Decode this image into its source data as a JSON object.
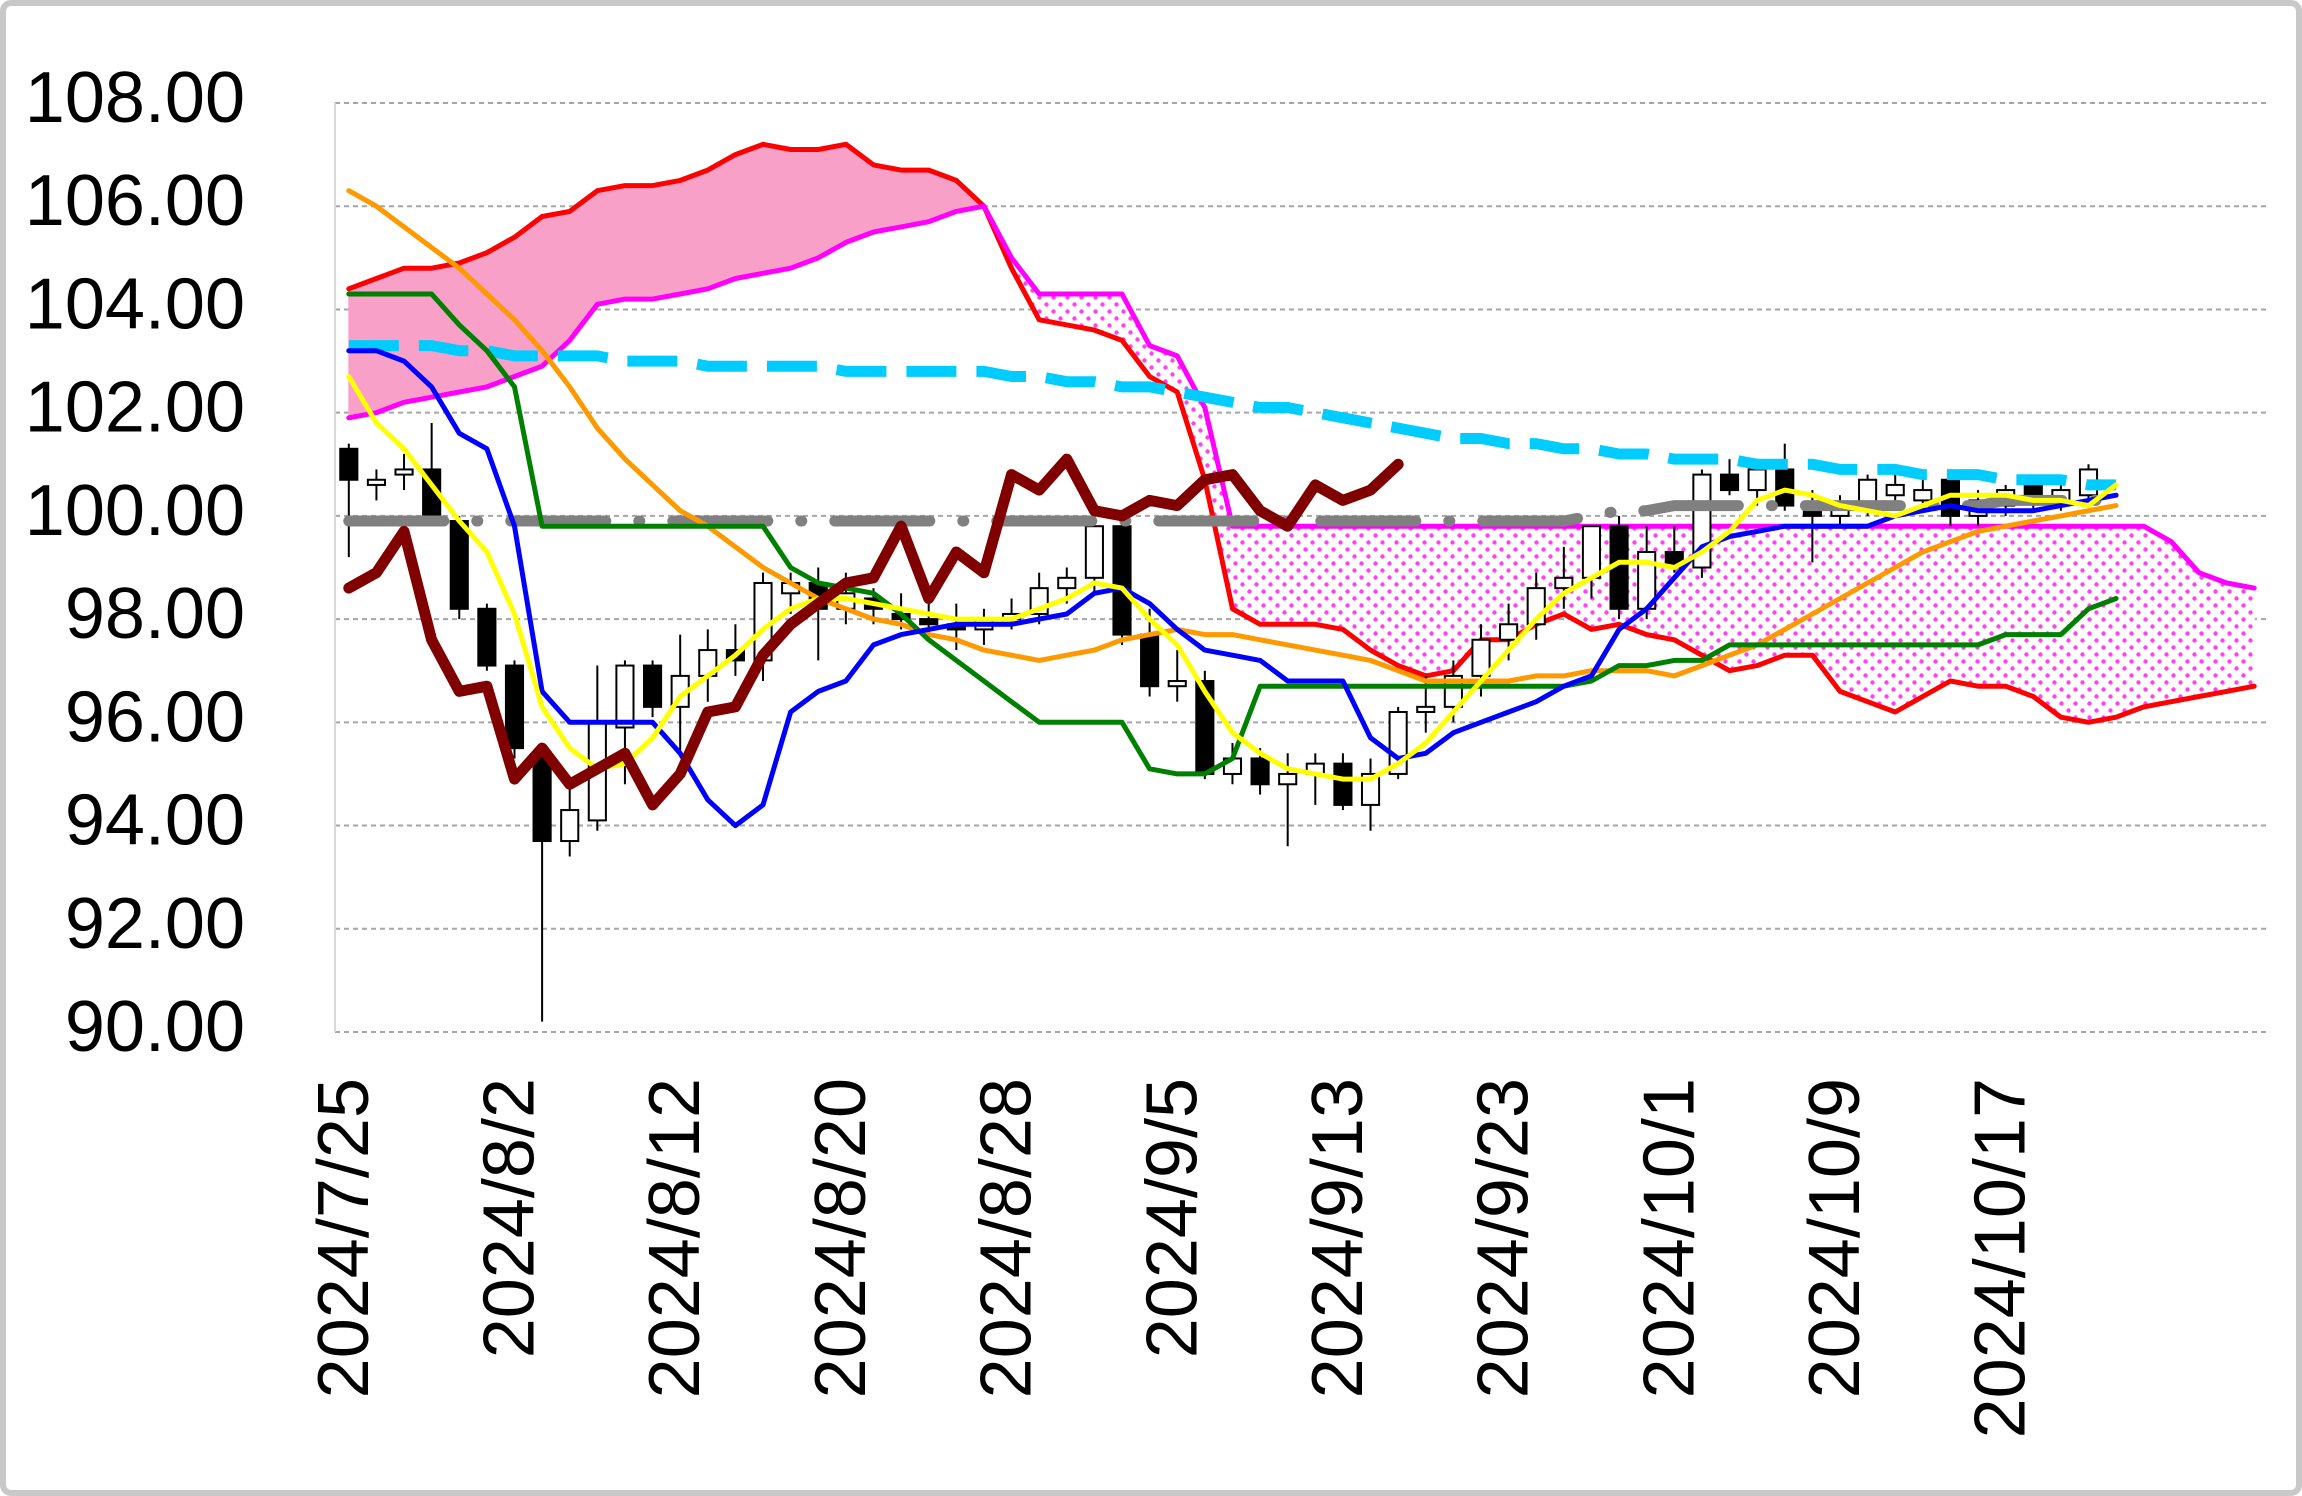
{
  "chart_data": {
    "type": "ichimoku",
    "categories": [
      "2024/7/25",
      null,
      null,
      null,
      null,
      null,
      "2024/8/2",
      null,
      null,
      null,
      null,
      null,
      "2024/8/12",
      null,
      null,
      null,
      null,
      null,
      "2024/8/20",
      null,
      null,
      null,
      null,
      null,
      "2024/8/28",
      null,
      null,
      null,
      null,
      null,
      "2024/9/5",
      null,
      null,
      null,
      null,
      null,
      "2024/9/13",
      null,
      null,
      null,
      null,
      null,
      "2024/9/23",
      null,
      null,
      null,
      null,
      null,
      "2024/10/1",
      null,
      null,
      null,
      null,
      null,
      "2024/10/9",
      null,
      null,
      null,
      null,
      null,
      "2024/10/17",
      null,
      null,
      null,
      null,
      null,
      null,
      null,
      null,
      null
    ],
    "ylim": [
      90,
      108
    ],
    "yticks": [
      {
        "value": 90,
        "label": "90.00"
      },
      {
        "value": 92,
        "label": "92.00"
      },
      {
        "value": 94,
        "label": "94.00"
      },
      {
        "value": 96,
        "label": "96.00"
      },
      {
        "value": 98,
        "label": "98.00"
      },
      {
        "value": 100,
        "label": "100.00"
      },
      {
        "value": 102,
        "label": "102.00"
      },
      {
        "value": 104,
        "label": "104.00"
      },
      {
        "value": 106,
        "label": "106.00"
      },
      {
        "value": 108,
        "label": "108.00"
      }
    ],
    "grid": true,
    "candles": {
      "up_color": "#ffffff",
      "down_color": "#000000",
      "edge_color": "#000000",
      "open": [
        101.3,
        100.6,
        100.8,
        100.9,
        99.9,
        98.2,
        97.1,
        95.4,
        93.7,
        94.1,
        95.9,
        97.1,
        96.3,
        96.9,
        97.4,
        97.2,
        98.5,
        98.7,
        98.2,
        98.4,
        98.1,
        98.0,
        97.9,
        97.8,
        98.0,
        98.1,
        98.6,
        98.8,
        99.8,
        97.7,
        96.7,
        96.8,
        95.0,
        95.3,
        94.8,
        95.0,
        95.2,
        94.4,
        95.0,
        96.2,
        96.3,
        96.9,
        97.6,
        97.9,
        98.6,
        98.8,
        99.8,
        98.2,
        99.3,
        99.0,
        100.8,
        100.5,
        100.9,
        100.2,
        100.0,
        100.2,
        100.4,
        100.3,
        100.7,
        100.0,
        100.2,
        100.6,
        100.3,
        100.4,
        null,
        null,
        null,
        null,
        null,
        null
      ],
      "high": [
        101.4,
        100.9,
        101.2,
        101.8,
        100.0,
        98.3,
        97.2,
        95.6,
        94.8,
        97.1,
        97.2,
        97.2,
        97.7,
        97.8,
        97.9,
        98.9,
        98.9,
        99.0,
        98.9,
        98.6,
        98.5,
        98.3,
        98.3,
        98.2,
        98.4,
        98.9,
        99.0,
        100.1,
        99.9,
        98.2,
        97.4,
        97.0,
        95.6,
        95.5,
        95.4,
        95.4,
        95.4,
        95.3,
        96.3,
        96.9,
        97.2,
        97.9,
        98.3,
        98.9,
        99.4,
        99.8,
        100.0,
        99.8,
        99.8,
        100.9,
        101.1,
        101.1,
        101.4,
        100.5,
        100.4,
        100.8,
        100.8,
        100.7,
        100.9,
        100.5,
        100.6,
        100.8,
        100.6,
        101.0,
        null,
        null,
        null,
        null,
        null,
        null
      ],
      "low": [
        99.2,
        100.3,
        100.5,
        99.9,
        98.0,
        97.0,
        95.3,
        90.2,
        93.4,
        93.9,
        94.8,
        96.1,
        95.4,
        96.4,
        96.9,
        96.8,
        98.1,
        97.2,
        97.9,
        97.9,
        97.8,
        97.6,
        97.4,
        97.5,
        97.8,
        97.9,
        98.3,
        98.5,
        97.5,
        96.5,
        96.4,
        94.9,
        94.8,
        94.6,
        93.6,
        94.4,
        94.3,
        93.9,
        94.9,
        95.8,
        96.0,
        96.5,
        97.2,
        97.6,
        98.2,
        98.4,
        98.0,
        98.0,
        98.9,
        98.8,
        100.4,
        100.2,
        100.1,
        99.1,
        99.8,
        100.0,
        100.1,
        100.1,
        99.8,
        99.8,
        100.0,
        100.1,
        100.1,
        100.2,
        null,
        null,
        null,
        null,
        null,
        null
      ],
      "close": [
        100.7,
        100.7,
        100.9,
        100.0,
        98.2,
        97.1,
        95.5,
        93.7,
        94.3,
        96.0,
        97.1,
        96.3,
        96.9,
        97.4,
        97.2,
        98.7,
        98.7,
        98.2,
        98.5,
        98.2,
        98.0,
        97.9,
        97.8,
        98.0,
        98.1,
        98.6,
        98.8,
        99.8,
        97.7,
        96.7,
        96.8,
        95.0,
        95.3,
        94.8,
        95.0,
        95.2,
        94.4,
        95.0,
        96.2,
        96.3,
        96.9,
        97.6,
        97.9,
        98.6,
        98.8,
        99.8,
        98.2,
        99.3,
        99.0,
        100.8,
        100.5,
        100.9,
        100.2,
        100.0,
        100.2,
        100.7,
        100.6,
        100.5,
        100.0,
        100.3,
        100.5,
        100.3,
        100.5,
        100.9,
        null,
        null,
        null,
        null,
        null,
        null
      ]
    },
    "cloud_colors": {
      "above": "#f9a0c8",
      "below": "#ff44ee"
    },
    "series": [
      {
        "role": "senkou_a",
        "color": "#ff0000",
        "line_style": "solid",
        "bold": false,
        "values": [
          104.4,
          104.6,
          104.8,
          104.8,
          104.9,
          105.1,
          105.4,
          105.8,
          105.9,
          106.3,
          106.4,
          106.4,
          106.5,
          106.7,
          107.0,
          107.2,
          107.1,
          107.1,
          107.2,
          106.8,
          106.7,
          106.7,
          106.5,
          106.0,
          104.8,
          103.8,
          103.7,
          103.6,
          103.4,
          102.7,
          102.4,
          100.7,
          98.2,
          97.9,
          97.9,
          97.9,
          97.8,
          97.4,
          97.1,
          96.9,
          97.0,
          97.6,
          97.6,
          97.9,
          98.1,
          97.8,
          97.9,
          97.7,
          97.6,
          97.3,
          97.0,
          97.1,
          97.3,
          97.3,
          96.6,
          96.4,
          96.2,
          96.5,
          96.8,
          96.7,
          96.7,
          96.5,
          96.1,
          96.0,
          96.1,
          96.3,
          96.4,
          96.5,
          96.6,
          96.7
        ]
      },
      {
        "role": "senkou_b",
        "color": "#ff00ff",
        "line_style": "solid",
        "bold": false,
        "values": [
          101.9,
          102.0,
          102.2,
          102.3,
          102.4,
          102.5,
          102.7,
          102.9,
          103.4,
          104.1,
          104.2,
          104.2,
          104.3,
          104.4,
          104.6,
          104.7,
          104.8,
          105.0,
          105.3,
          105.5,
          105.6,
          105.7,
          105.9,
          106.0,
          105.0,
          104.3,
          104.3,
          104.3,
          104.3,
          103.3,
          103.1,
          102.1,
          99.8,
          99.8,
          99.8,
          99.8,
          99.8,
          99.8,
          99.8,
          99.8,
          99.8,
          99.8,
          99.8,
          99.8,
          99.8,
          99.8,
          99.8,
          99.8,
          99.8,
          99.8,
          99.8,
          99.8,
          99.8,
          99.8,
          99.8,
          99.8,
          99.8,
          99.8,
          99.8,
          99.8,
          99.8,
          99.8,
          99.8,
          99.8,
          99.8,
          99.8,
          99.5,
          98.9,
          98.7,
          98.6
        ]
      },
      {
        "color": "#808080",
        "line_style": "dashdot",
        "bold": true,
        "values": [
          99.9,
          99.9,
          99.9,
          99.9,
          99.9,
          99.9,
          99.9,
          99.9,
          99.9,
          99.9,
          99.9,
          99.9,
          99.9,
          99.9,
          99.9,
          99.9,
          99.9,
          99.9,
          99.9,
          99.9,
          99.9,
          99.9,
          99.9,
          99.9,
          99.9,
          99.9,
          99.9,
          99.9,
          99.9,
          99.9,
          99.9,
          99.9,
          99.9,
          99.9,
          99.9,
          99.9,
          99.9,
          99.9,
          99.9,
          99.9,
          99.9,
          99.9,
          99.9,
          99.9,
          99.9,
          100.0,
          100.1,
          100.1,
          100.2,
          100.2,
          100.2,
          100.2,
          100.2,
          100.2,
          100.2,
          100.2,
          100.2,
          100.2,
          100.2,
          100.2,
          100.3,
          100.3,
          100.3,
          100.3,
          100.3,
          null,
          null,
          null,
          null,
          null
        ]
      },
      {
        "color": "#00ccff",
        "line_style": "dashed",
        "bold": true,
        "values": [
          103.3,
          103.3,
          103.3,
          103.3,
          103.2,
          103.2,
          103.1,
          103.1,
          103.1,
          103.1,
          103.0,
          103.0,
          103.0,
          102.9,
          102.9,
          102.9,
          102.9,
          102.9,
          102.8,
          102.8,
          102.8,
          102.8,
          102.8,
          102.8,
          102.7,
          102.7,
          102.6,
          102.6,
          102.5,
          102.5,
          102.4,
          102.3,
          102.2,
          102.1,
          102.1,
          102.0,
          101.9,
          101.8,
          101.7,
          101.6,
          101.5,
          101.5,
          101.4,
          101.4,
          101.3,
          101.3,
          101.2,
          101.2,
          101.1,
          101.1,
          101.1,
          101.0,
          101.0,
          101.0,
          100.9,
          100.9,
          100.9,
          100.8,
          100.8,
          100.8,
          100.7,
          100.7,
          100.7,
          100.6,
          100.6,
          null,
          null,
          null,
          null,
          null
        ]
      },
      {
        "color": "#ff9900",
        "line_style": "solid",
        "bold": false,
        "values": [
          106.3,
          106.0,
          105.6,
          105.2,
          104.8,
          104.3,
          103.8,
          103.2,
          102.5,
          101.7,
          101.1,
          100.6,
          100.1,
          99.8,
          99.4,
          99.0,
          98.7,
          98.4,
          98.2,
          98.0,
          97.9,
          97.7,
          97.6,
          97.4,
          97.3,
          97.2,
          97.3,
          97.4,
          97.6,
          97.7,
          97.8,
          97.7,
          97.7,
          97.6,
          97.5,
          97.4,
          97.3,
          97.2,
          97.0,
          96.8,
          96.8,
          96.8,
          96.8,
          96.9,
          96.9,
          97.0,
          97.0,
          97.0,
          96.9,
          97.1,
          97.3,
          97.5,
          97.8,
          98.1,
          98.4,
          98.7,
          99.0,
          99.3,
          99.5,
          99.7,
          99.8,
          99.9,
          100.0,
          100.1,
          100.2,
          null,
          null,
          null,
          null,
          null
        ]
      },
      {
        "color": "#008000",
        "line_style": "solid",
        "bold": false,
        "values": [
          104.3,
          104.3,
          104.3,
          104.3,
          103.7,
          103.2,
          102.5,
          99.8,
          99.8,
          99.8,
          99.8,
          99.8,
          99.8,
          99.8,
          99.8,
          99.8,
          99.0,
          98.7,
          98.6,
          98.5,
          98.1,
          97.6,
          97.2,
          96.8,
          96.4,
          96.0,
          96.0,
          96.0,
          96.0,
          95.1,
          95.0,
          95.0,
          95.3,
          96.7,
          96.7,
          96.7,
          96.7,
          96.7,
          96.7,
          96.7,
          96.7,
          96.7,
          96.7,
          96.7,
          96.7,
          96.8,
          97.1,
          97.1,
          97.2,
          97.2,
          97.5,
          97.5,
          97.5,
          97.5,
          97.5,
          97.5,
          97.5,
          97.5,
          97.5,
          97.5,
          97.7,
          97.7,
          97.7,
          98.2,
          98.4,
          null,
          null,
          null,
          null,
          null
        ]
      },
      {
        "color": "#0000ff",
        "line_style": "solid",
        "bold": false,
        "values": [
          103.2,
          103.2,
          103.0,
          102.5,
          101.6,
          101.3,
          99.8,
          96.6,
          96.0,
          96.0,
          96.0,
          96.0,
          95.4,
          94.5,
          94.0,
          94.4,
          96.2,
          96.6,
          96.8,
          97.5,
          97.7,
          97.8,
          97.9,
          97.9,
          97.9,
          98.0,
          98.1,
          98.5,
          98.6,
          98.3,
          97.8,
          97.4,
          97.3,
          97.2,
          96.8,
          96.8,
          96.8,
          95.7,
          95.3,
          95.4,
          95.8,
          96.0,
          96.2,
          96.4,
          96.7,
          96.9,
          97.8,
          98.2,
          98.8,
          99.4,
          99.6,
          99.7,
          99.8,
          99.8,
          99.8,
          99.8,
          100.0,
          100.1,
          100.2,
          100.1,
          100.1,
          100.1,
          100.2,
          100.3,
          100.4,
          null,
          null,
          null,
          null,
          null
        ]
      },
      {
        "color": "#ffff00",
        "line_style": "solid",
        "bold": false,
        "values": [
          102.7,
          101.8,
          101.3,
          100.6,
          99.9,
          99.3,
          98.1,
          96.3,
          95.5,
          95.1,
          95.2,
          95.7,
          96.5,
          96.9,
          97.3,
          97.8,
          98.2,
          98.4,
          98.4,
          98.3,
          98.2,
          98.1,
          98.0,
          98.0,
          98.0,
          98.2,
          98.4,
          98.7,
          98.6,
          98.0,
          97.5,
          96.6,
          95.8,
          95.4,
          95.1,
          95.0,
          94.9,
          94.9,
          95.2,
          95.6,
          96.2,
          96.8,
          97.4,
          98.0,
          98.5,
          98.8,
          99.1,
          99.1,
          99.0,
          99.3,
          99.7,
          100.3,
          100.5,
          100.4,
          100.2,
          100.1,
          100.0,
          100.2,
          100.4,
          100.4,
          100.4,
          100.3,
          100.3,
          100.2,
          100.6,
          null,
          null,
          null,
          null,
          null
        ]
      },
      {
        "color": "#800000",
        "line_style": "solid",
        "bold": true,
        "values": [
          98.6,
          98.9,
          99.7,
          97.6,
          96.6,
          96.7,
          94.9,
          95.5,
          94.8,
          95.1,
          95.4,
          94.4,
          95.0,
          96.2,
          96.3,
          97.3,
          97.9,
          98.3,
          98.7,
          98.8,
          99.8,
          98.4,
          99.3,
          98.9,
          100.8,
          100.5,
          101.1,
          100.1,
          100.0,
          100.3,
          100.2,
          100.7,
          100.8,
          100.1,
          99.8,
          100.6,
          100.3,
          100.5,
          101.0,
          null,
          null,
          null,
          null,
          null,
          null,
          null,
          null,
          null,
          null,
          null,
          null,
          null,
          null,
          null,
          null,
          null,
          null,
          null,
          null,
          null,
          null,
          null,
          null,
          null,
          null,
          null,
          null,
          null,
          null,
          null
        ]
      }
    ]
  }
}
